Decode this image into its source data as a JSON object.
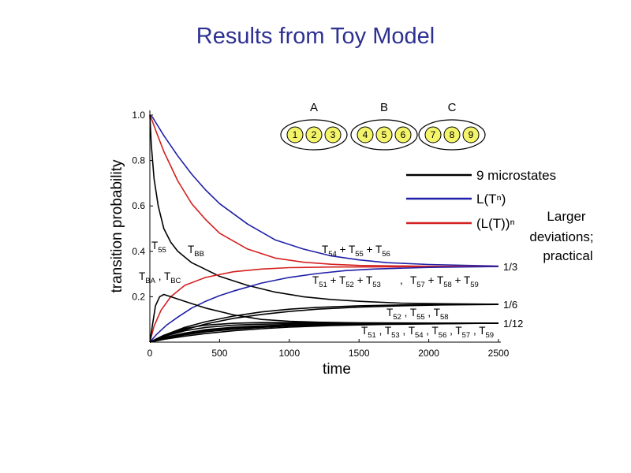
{
  "slide": {
    "title": "Results from Toy Model"
  },
  "chart_data": {
    "type": "line",
    "xlabel": "time",
    "ylabel": "transition probability",
    "xlim": [
      0,
      2500
    ],
    "ylim": [
      0,
      1.0
    ],
    "x_ticks": [
      "0",
      "500",
      "1000",
      "1500",
      "2000",
      "2500"
    ],
    "y_ticks": [
      "1.0",
      "0.8",
      "0.6",
      "0.4",
      "0.2"
    ],
    "right_labels": [
      {
        "text": "1/3",
        "value": 0.333
      },
      {
        "text": "1/6",
        "value": 0.1667
      },
      {
        "text": "1/12",
        "value": 0.0833
      }
    ],
    "legend": [
      {
        "name": "9 microstates",
        "color": "#000000"
      },
      {
        "name": "L(Tⁿ)",
        "color": "#1f1fa8"
      },
      {
        "name": "(L(T))ⁿ",
        "color": "#d42020"
      }
    ],
    "note": [
      "Larger",
      "deviations;",
      "practical"
    ],
    "annotations": {
      "t55": {
        "base": "T",
        "sub": "55"
      },
      "tbb": {
        "base": "T",
        "sub": "BB"
      },
      "tba_tbc": [
        {
          "base": "T",
          "sub": "BA"
        },
        {
          "base": "T",
          "sub": "BC"
        }
      ],
      "sum_54_55_56": [
        {
          "base": "T",
          "sub": "54"
        },
        {
          "base": "T",
          "sub": "55"
        },
        {
          "base": "T",
          "sub": "56"
        }
      ],
      "sum_51_53_57_59": [
        {
          "base": "T",
          "sub": "51"
        },
        {
          "base": "T",
          "sub": "52"
        },
        {
          "base": "T",
          "sub": "53"
        },
        {
          "base": "T",
          "sub": "57"
        },
        {
          "base": "T",
          "sub": "58"
        },
        {
          "base": "T",
          "sub": "59"
        }
      ],
      "list_52_55_58": [
        {
          "base": "T",
          "sub": "52"
        },
        {
          "base": "T",
          "sub": "55"
        },
        {
          "base": "T",
          "sub": "58"
        }
      ],
      "list_rest": [
        {
          "base": "T",
          "sub": "51"
        },
        {
          "base": "T",
          "sub": "53"
        },
        {
          "base": "T",
          "sub": "54"
        },
        {
          "base": "T",
          "sub": "56"
        },
        {
          "base": "T",
          "sub": "57"
        },
        {
          "base": "T",
          "sub": "59"
        }
      ]
    },
    "groups": [
      {
        "label": "A",
        "nodes": [
          "1",
          "2",
          "3"
        ]
      },
      {
        "label": "B",
        "nodes": [
          "4",
          "5",
          "6"
        ]
      },
      {
        "label": "C",
        "nodes": [
          "7",
          "8",
          "9"
        ]
      }
    ],
    "series": [
      {
        "color": "#1f1fa8",
        "points": [
          [
            0,
            1.0
          ],
          [
            20,
            0.99
          ],
          [
            50,
            0.96
          ],
          [
            100,
            0.91
          ],
          [
            200,
            0.82
          ],
          [
            300,
            0.74
          ],
          [
            400,
            0.67
          ],
          [
            500,
            0.61
          ],
          [
            700,
            0.52
          ],
          [
            900,
            0.45
          ],
          [
            1100,
            0.41
          ],
          [
            1300,
            0.38
          ],
          [
            1500,
            0.362
          ],
          [
            1700,
            0.35
          ],
          [
            2000,
            0.342
          ],
          [
            2500,
            0.335
          ]
        ]
      },
      {
        "color": "#d42020",
        "points": [
          [
            0,
            1.0
          ],
          [
            20,
            0.97
          ],
          [
            50,
            0.92
          ],
          [
            100,
            0.84
          ],
          [
            200,
            0.71
          ],
          [
            300,
            0.61
          ],
          [
            400,
            0.54
          ],
          [
            500,
            0.48
          ],
          [
            700,
            0.41
          ],
          [
            900,
            0.37
          ],
          [
            1100,
            0.352
          ],
          [
            1300,
            0.343
          ],
          [
            1500,
            0.338
          ],
          [
            2000,
            0.334
          ],
          [
            2500,
            0.333
          ]
        ]
      },
      {
        "color": "#000000",
        "points": [
          [
            0,
            1.0
          ],
          [
            10,
            0.87
          ],
          [
            30,
            0.72
          ],
          [
            60,
            0.6
          ],
          [
            100,
            0.5
          ],
          [
            150,
            0.44
          ],
          [
            200,
            0.4
          ],
          [
            300,
            0.35
          ],
          [
            400,
            0.32
          ],
          [
            500,
            0.29
          ],
          [
            700,
            0.25
          ],
          [
            900,
            0.22
          ],
          [
            1100,
            0.2
          ],
          [
            1300,
            0.188
          ],
          [
            1500,
            0.18
          ],
          [
            1800,
            0.172
          ],
          [
            2100,
            0.169
          ],
          [
            2500,
            0.167
          ]
        ]
      },
      {
        "color": "#d42020",
        "points": [
          [
            0,
            0
          ],
          [
            30,
            0.07
          ],
          [
            80,
            0.14
          ],
          [
            150,
            0.2
          ],
          [
            250,
            0.25
          ],
          [
            400,
            0.285
          ],
          [
            600,
            0.31
          ],
          [
            800,
            0.322
          ],
          [
            1000,
            0.328
          ],
          [
            1300,
            0.331
          ],
          [
            2500,
            0.333
          ]
        ]
      },
      {
        "color": "#1f1fa8",
        "points": [
          [
            0,
            0
          ],
          [
            50,
            0.035
          ],
          [
            120,
            0.075
          ],
          [
            200,
            0.11
          ],
          [
            300,
            0.15
          ],
          [
            400,
            0.18
          ],
          [
            500,
            0.205
          ],
          [
            600,
            0.225
          ],
          [
            800,
            0.26
          ],
          [
            1000,
            0.285
          ],
          [
            1200,
            0.302
          ],
          [
            1400,
            0.315
          ],
          [
            1600,
            0.322
          ],
          [
            2000,
            0.329
          ],
          [
            2500,
            0.333
          ]
        ]
      },
      {
        "color": "#000000",
        "points": [
          [
            0,
            0
          ],
          [
            20,
            0.08
          ],
          [
            40,
            0.16
          ],
          [
            70,
            0.2
          ],
          [
            100,
            0.21
          ],
          [
            150,
            0.2
          ],
          [
            250,
            0.18
          ],
          [
            400,
            0.15
          ],
          [
            600,
            0.12
          ],
          [
            800,
            0.1
          ],
          [
            1000,
            0.092
          ],
          [
            1200,
            0.088
          ],
          [
            1500,
            0.085
          ],
          [
            2500,
            0.0833
          ]
        ]
      },
      {
        "color": "#000000",
        "points": [
          [
            0,
            0
          ],
          [
            100,
            0.03
          ],
          [
            250,
            0.065
          ],
          [
            400,
            0.09
          ],
          [
            600,
            0.115
          ],
          [
            800,
            0.133
          ],
          [
            1000,
            0.145
          ],
          [
            1200,
            0.153
          ],
          [
            1500,
            0.16
          ],
          [
            1800,
            0.164
          ],
          [
            2100,
            0.166
          ],
          [
            2500,
            0.167
          ]
        ]
      },
      {
        "color": "#000000",
        "points": [
          [
            0,
            0
          ],
          [
            100,
            0.025
          ],
          [
            250,
            0.055
          ],
          [
            400,
            0.08
          ],
          [
            600,
            0.105
          ],
          [
            800,
            0.122
          ],
          [
            1000,
            0.135
          ],
          [
            1200,
            0.145
          ],
          [
            1500,
            0.154
          ],
          [
            1800,
            0.16
          ],
          [
            2100,
            0.164
          ],
          [
            2500,
            0.166
          ]
        ]
      },
      {
        "color": "#000000",
        "points": [
          [
            0,
            0
          ],
          [
            100,
            0.03
          ],
          [
            250,
            0.06
          ],
          [
            400,
            0.075
          ],
          [
            600,
            0.083
          ],
          [
            800,
            0.086
          ],
          [
            1000,
            0.086
          ],
          [
            1300,
            0.085
          ],
          [
            1700,
            0.084
          ],
          [
            2500,
            0.0833
          ]
        ]
      },
      {
        "color": "#000000",
        "points": [
          [
            0,
            0
          ],
          [
            100,
            0.025
          ],
          [
            250,
            0.05
          ],
          [
            400,
            0.065
          ],
          [
            600,
            0.075
          ],
          [
            800,
            0.079
          ],
          [
            1000,
            0.081
          ],
          [
            1300,
            0.082
          ],
          [
            1700,
            0.083
          ],
          [
            2500,
            0.0833
          ]
        ]
      },
      {
        "color": "#000000",
        "points": [
          [
            0,
            0
          ],
          [
            100,
            0.02
          ],
          [
            250,
            0.04
          ],
          [
            400,
            0.055
          ],
          [
            600,
            0.066
          ],
          [
            800,
            0.072
          ],
          [
            1000,
            0.076
          ],
          [
            1300,
            0.079
          ],
          [
            1700,
            0.081
          ],
          [
            2500,
            0.0833
          ]
        ]
      },
      {
        "color": "#000000",
        "points": [
          [
            0,
            0
          ],
          [
            100,
            0.015
          ],
          [
            250,
            0.032
          ],
          [
            400,
            0.045
          ],
          [
            600,
            0.057
          ],
          [
            800,
            0.065
          ],
          [
            1000,
            0.071
          ],
          [
            1300,
            0.076
          ],
          [
            1700,
            0.08
          ],
          [
            2500,
            0.0833
          ]
        ]
      },
      {
        "color": "#000000",
        "points": [
          [
            0,
            0
          ],
          [
            100,
            0.012
          ],
          [
            250,
            0.026
          ],
          [
            400,
            0.038
          ],
          [
            600,
            0.05
          ],
          [
            800,
            0.059
          ],
          [
            1000,
            0.066
          ],
          [
            1300,
            0.073
          ],
          [
            1700,
            0.078
          ],
          [
            2500,
            0.0833
          ]
        ]
      },
      {
        "color": "#000000",
        "points": [
          [
            0,
            0
          ],
          [
            100,
            0.018
          ],
          [
            250,
            0.036
          ],
          [
            400,
            0.05
          ],
          [
            600,
            0.062
          ],
          [
            800,
            0.069
          ],
          [
            1000,
            0.074
          ],
          [
            1300,
            0.078
          ],
          [
            1700,
            0.081
          ],
          [
            2500,
            0.0833
          ]
        ]
      }
    ]
  }
}
